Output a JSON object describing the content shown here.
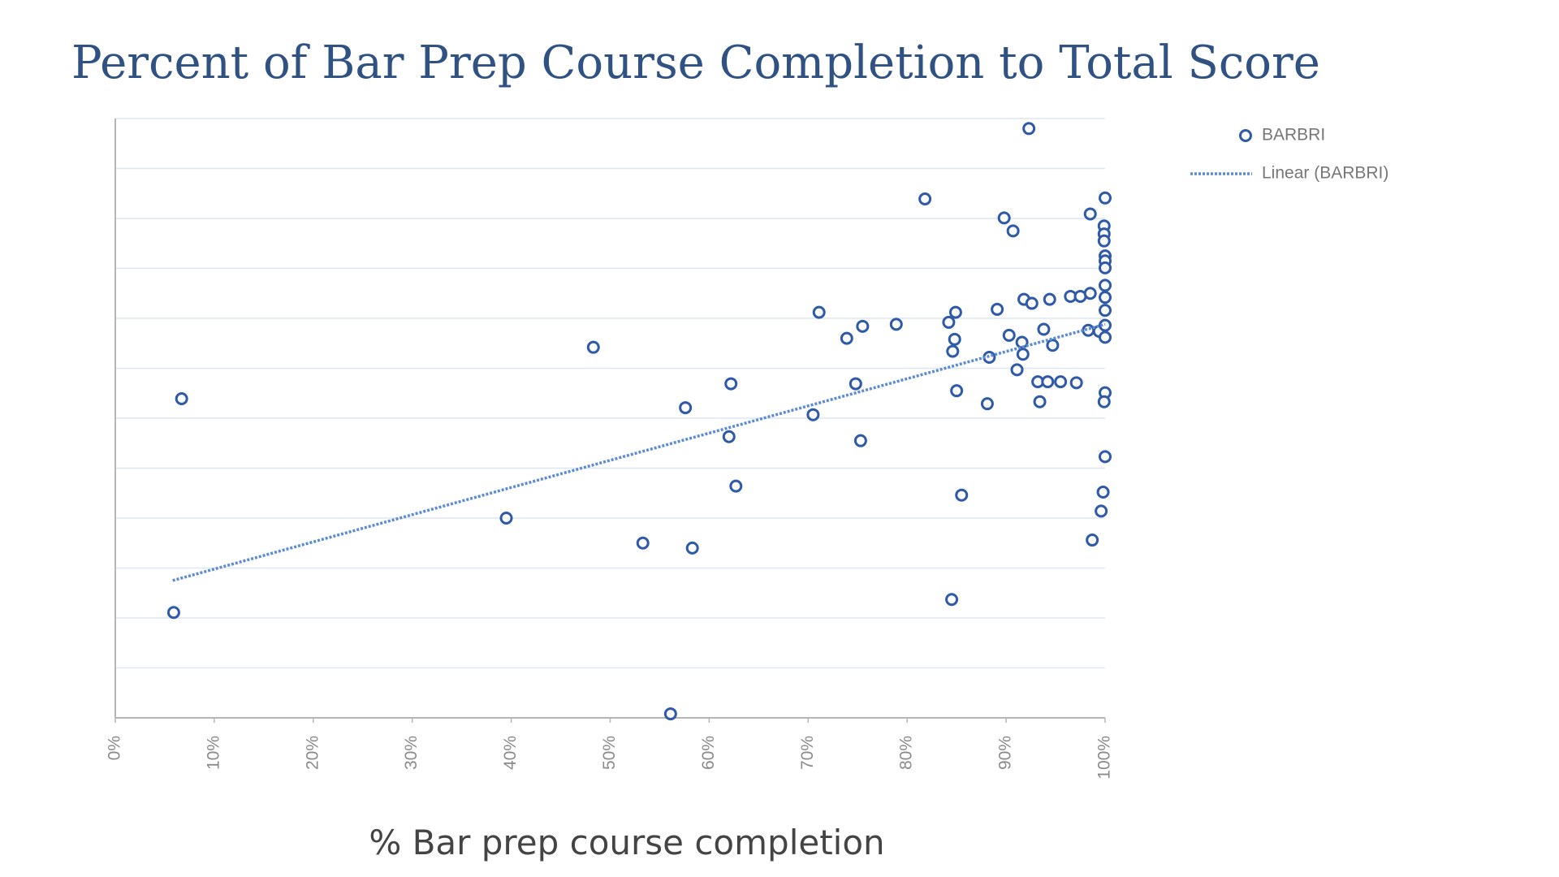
{
  "chart_data": {
    "type": "scatter",
    "title": "Percent of Bar Prep Course Completion to Total Score",
    "x_label": "% Bar prep course completion",
    "xlim": [
      0,
      100
    ],
    "xticks": [
      {
        "value": 0,
        "label": "0%"
      },
      {
        "value": 10,
        "label": "10%"
      },
      {
        "value": 20,
        "label": "20%"
      },
      {
        "value": 30,
        "label": "30%"
      },
      {
        "value": 40,
        "label": "40%"
      },
      {
        "value": 50,
        "label": "50%"
      },
      {
        "value": 60,
        "label": "60%"
      },
      {
        "value": 70,
        "label": "70%"
      },
      {
        "value": 80,
        "label": "80%"
      },
      {
        "value": 90,
        "label": "90%"
      },
      {
        "value": 100,
        "label": "100%"
      }
    ],
    "ylim": [
      0,
      12
    ],
    "yticks": [
      0,
      1,
      2,
      3,
      4,
      5,
      6,
      7,
      8,
      9,
      10,
      11,
      12
    ],
    "grid": true,
    "legend": "top-right-outside",
    "series": [
      {
        "name": "BARBRI",
        "color": "#2f5aa8",
        "marker": "circle",
        "x": [
          6.7,
          5.9,
          48.3,
          39.5,
          53.3,
          58.3,
          57.6,
          56.1,
          62.2,
          62.0,
          62.7,
          71.1,
          70.5,
          73.9,
          75.5,
          74.8,
          75.3,
          78.9,
          81.8,
          84.2,
          84.9,
          84.8,
          84.6,
          85.0,
          85.5,
          84.5,
          88.1,
          88.3,
          89.1,
          89.8,
          90.7,
          90.3,
          91.1,
          91.6,
          91.7,
          91.8,
          92.3,
          92.6,
          93.2,
          93.4,
          93.8,
          94.2,
          94.4,
          94.7,
          95.5,
          96.5,
          97.1,
          97.5,
          98.3,
          98.5,
          98.5,
          98.7,
          99.4,
          99.6,
          99.8,
          99.9,
          99.9,
          99.9,
          100,
          100,
          100,
          100,
          100,
          100,
          100,
          100,
          100,
          100,
          99.9,
          100
        ],
        "values": [
          6.39,
          2.11,
          7.42,
          4.0,
          3.5,
          3.4,
          6.21,
          0.08,
          6.69,
          5.63,
          4.64,
          8.12,
          6.07,
          7.6,
          7.84,
          6.69,
          5.55,
          7.88,
          10.39,
          7.92,
          8.12,
          7.58,
          7.34,
          6.55,
          4.46,
          2.37,
          6.29,
          7.22,
          8.18,
          10.01,
          9.75,
          7.66,
          6.97,
          7.52,
          7.28,
          8.38,
          11.8,
          8.3,
          6.73,
          6.33,
          7.78,
          6.73,
          8.38,
          7.46,
          6.73,
          8.44,
          6.71,
          8.44,
          7.76,
          8.5,
          10.09,
          3.56,
          7.74,
          4.14,
          4.52,
          9.85,
          9.69,
          9.55,
          9.25,
          9.15,
          9.01,
          8.66,
          8.42,
          8.16,
          7.86,
          7.62,
          10.41,
          6.51,
          6.33,
          5.23
        ]
      },
      {
        "name": "Linear (BARBRI)",
        "color": "#5b8bd6",
        "linestyle": "dotted",
        "x": [
          5.8,
          100
        ],
        "values": [
          2.75,
          7.88
        ]
      }
    ]
  }
}
